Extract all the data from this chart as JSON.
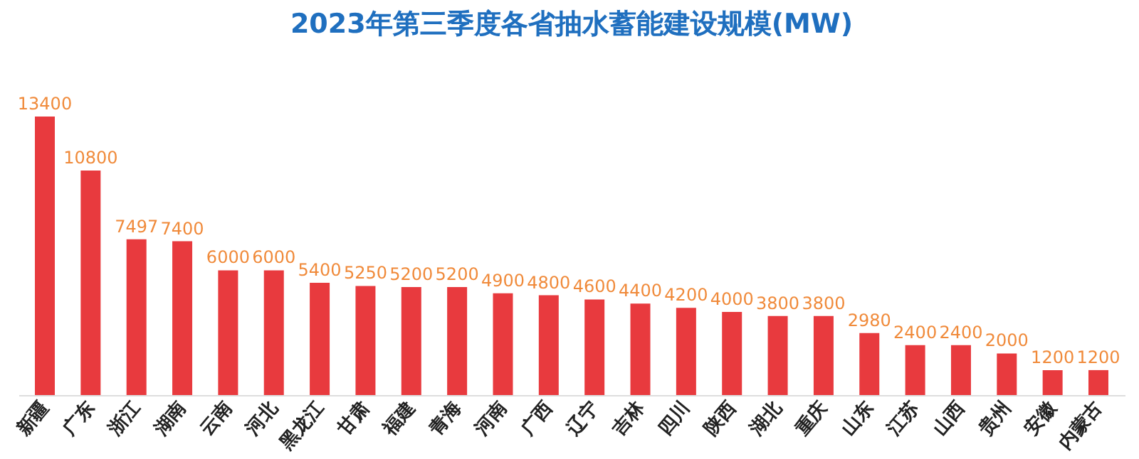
{
  "chart_data": {
    "type": "bar",
    "title": "2023年第三季度各省抽水蓄能建设规模(MW)",
    "categories": [
      "新疆",
      "广东",
      "浙江",
      "湖南",
      "云南",
      "河北",
      "黑龙江",
      "甘肃",
      "福建",
      "青海",
      "河南",
      "广西",
      "辽宁",
      "吉林",
      "四川",
      "陕西",
      "湖北",
      "重庆",
      "山东",
      "江苏",
      "山西",
      "贵州",
      "安徽",
      "内蒙古"
    ],
    "values": [
      13400,
      10800,
      7497,
      7400,
      6000,
      6000,
      5400,
      5250,
      5200,
      5200,
      4900,
      4800,
      4600,
      4400,
      4200,
      4000,
      3800,
      3800,
      2980,
      2400,
      2400,
      2000,
      1200,
      1200
    ],
    "color": "#e83a3e",
    "data_labels": true
  }
}
